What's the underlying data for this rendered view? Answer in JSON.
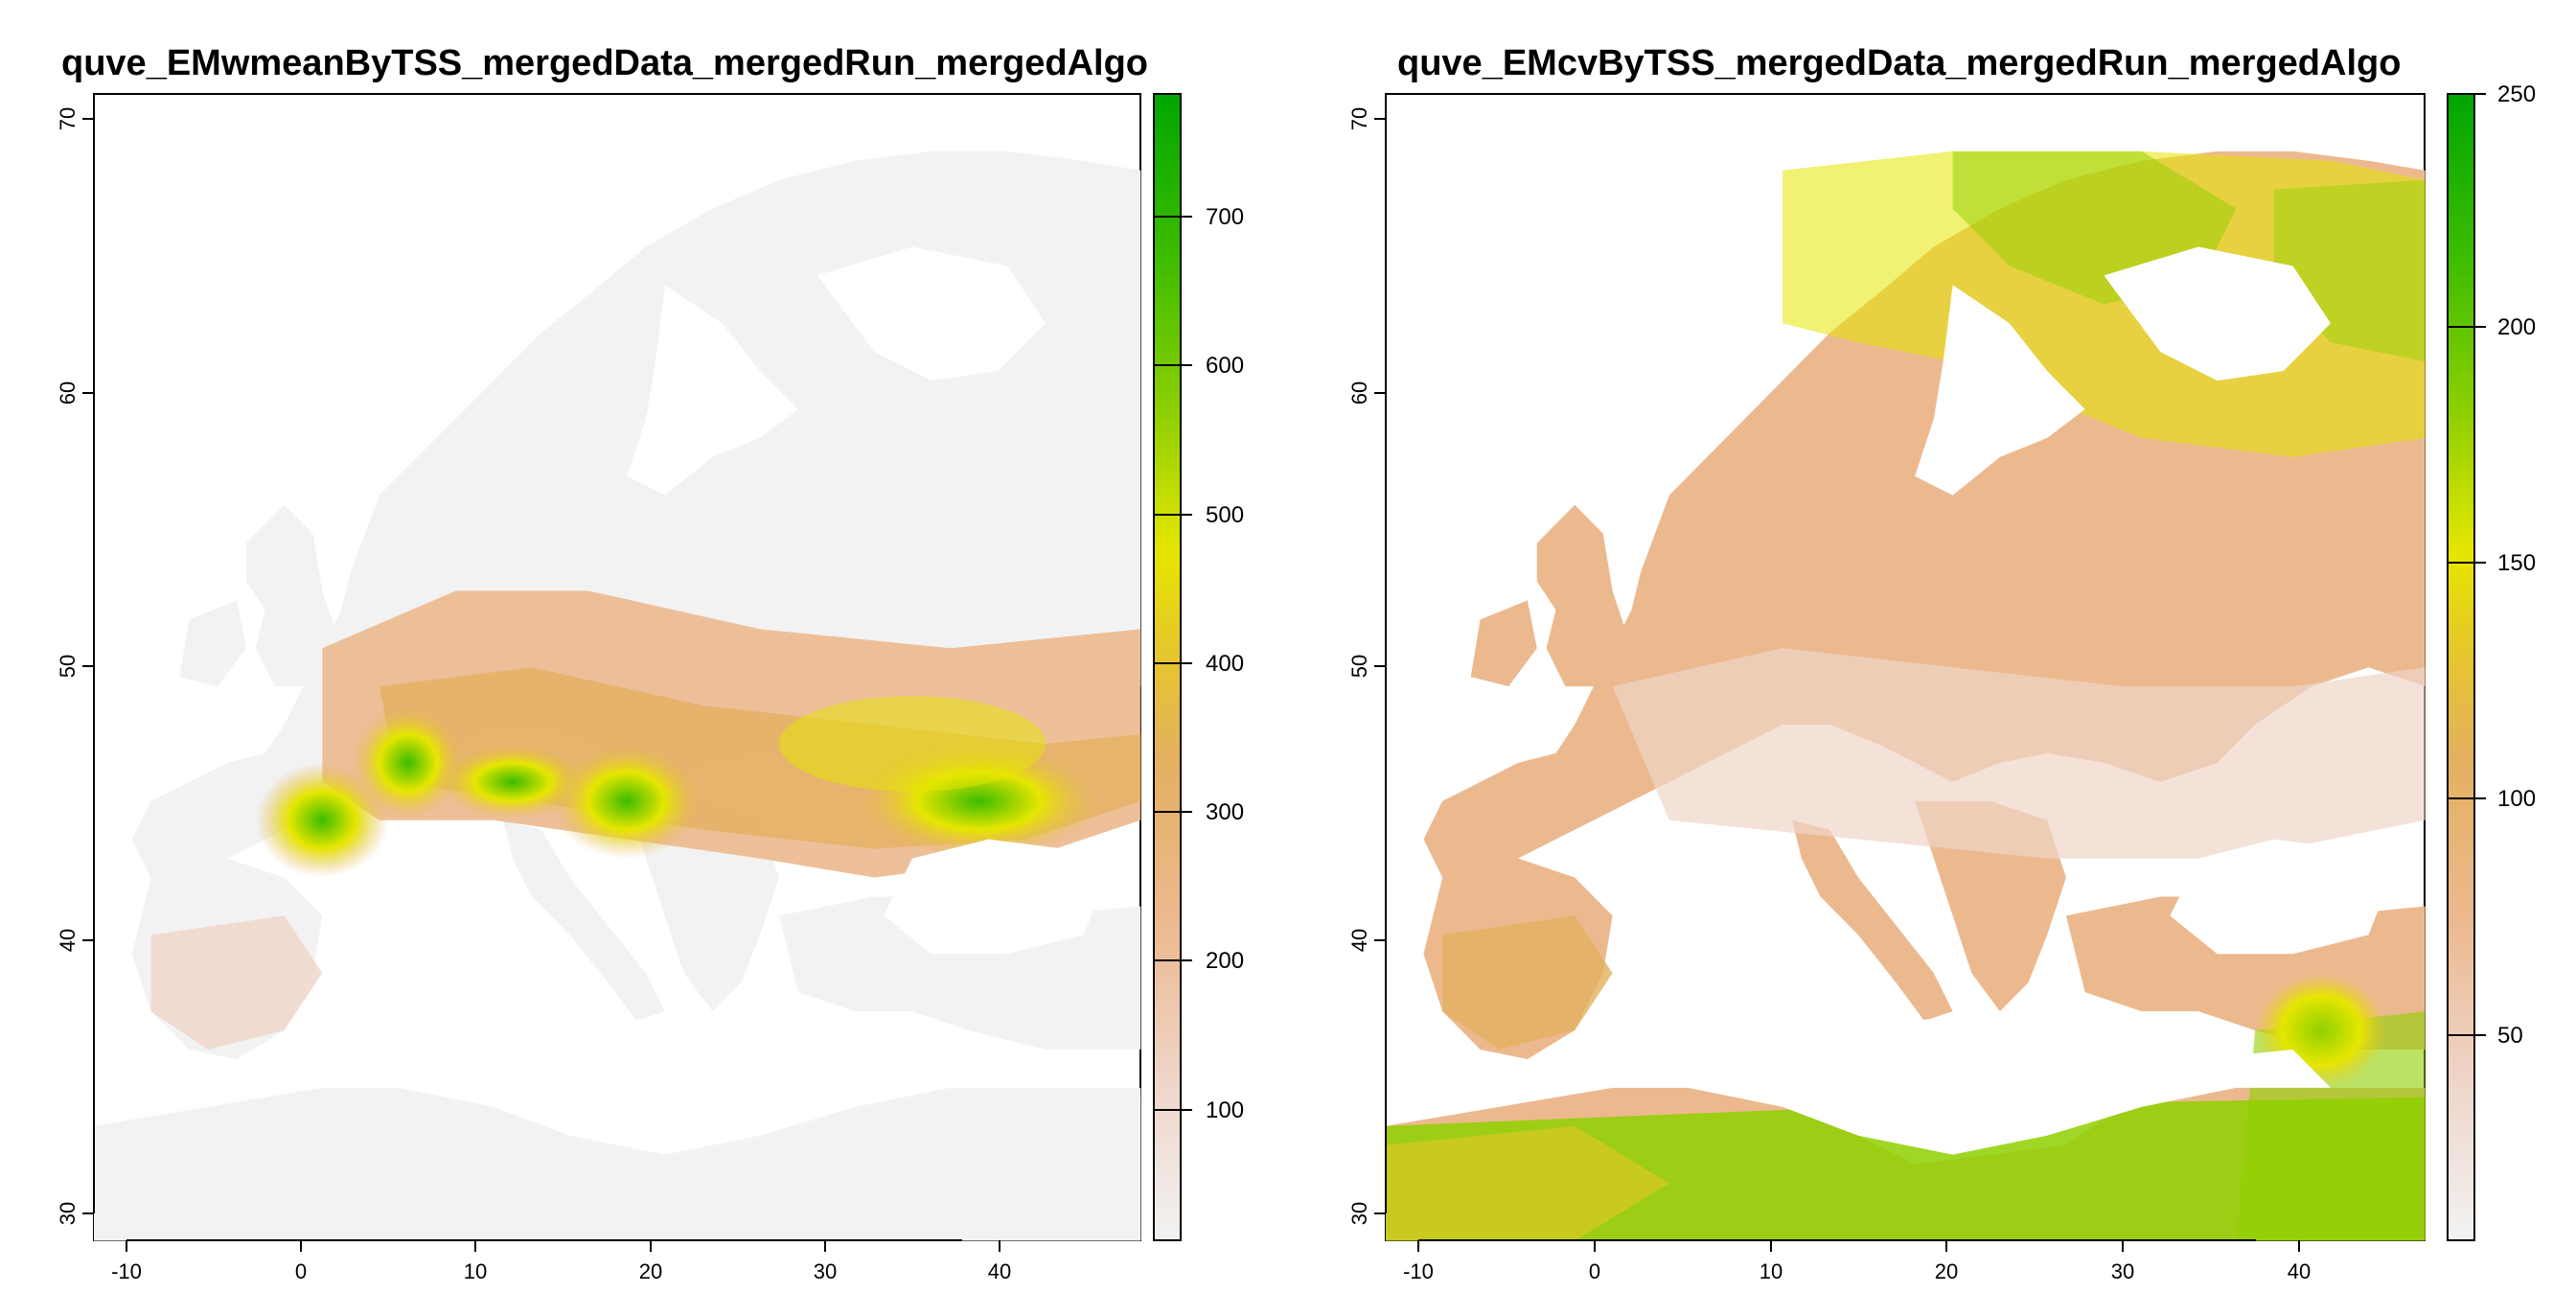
{
  "panels": [
    {
      "id": "left",
      "title": "quve_EMwmeanByTSS_mergedData_mergedRun_mergedAlgo",
      "x_ticks": [
        "-10",
        "0",
        "10",
        "20",
        "30",
        "40"
      ],
      "y_ticks": [
        "30",
        "40",
        "50",
        "60",
        "70"
      ],
      "colorbar_ticks": [
        "100",
        "200",
        "300",
        "400",
        "500",
        "600",
        "700"
      ],
      "legend_range": [
        20,
        780
      ],
      "colors": {
        "low": "#f2f2f2",
        "mid_low": "#ecb98f",
        "mid": "#e2c240",
        "high": "#e6e600",
        "top": "#00a600"
      }
    },
    {
      "id": "right",
      "title": "quve_EMcvByTSS_mergedData_mergedRun_mergedAlgo",
      "x_ticks": [
        "-10",
        "0",
        "10",
        "20",
        "30",
        "40"
      ],
      "y_ticks": [
        "30",
        "40",
        "50",
        "60",
        "70"
      ],
      "colorbar_ticks": [
        "50",
        "100",
        "150",
        "200",
        "250"
      ],
      "legend_range": [
        5,
        250
      ],
      "colors": {
        "low": "#f2f2f2",
        "mid_low": "#ecb98f",
        "mid": "#e2c240",
        "high": "#e6e600",
        "top": "#00a600"
      }
    }
  ],
  "map_data": {
    "extent": {
      "lon": [
        -12,
        47
      ],
      "lat": [
        29,
        71
      ]
    },
    "palette": [
      "#f2f2f2",
      "#efd5c8",
      "#ecb98f",
      "#e4b060",
      "#e6c828",
      "#e6e600",
      "#8fd000",
      "#3cbc00",
      "#00a600"
    ]
  }
}
